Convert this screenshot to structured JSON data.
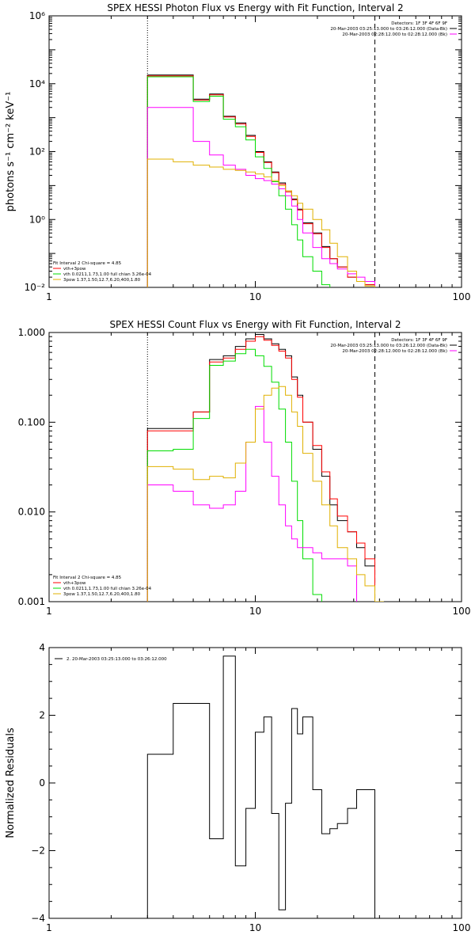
{
  "chart_data": [
    {
      "type": "line",
      "subtype": "step",
      "title": "SPEX HESSI Photon Flux vs Energy with Fit Function, Interval 2",
      "ylabel": "photons s⁻¹ cm⁻² keV⁻¹",
      "xlabel": "",
      "xscale": "log",
      "yscale": "log",
      "xlim": [
        1,
        100
      ],
      "ylim": [
        0.01,
        1000000
      ],
      "x_ticks": [
        "1",
        "10",
        "100"
      ],
      "y_ticks": [
        {
          "value": 1000000,
          "label": "10⁶"
        },
        {
          "value": 10000,
          "label": "10⁴"
        },
        {
          "value": 100,
          "label": "10²"
        },
        {
          "value": 1,
          "label": "10⁰"
        },
        {
          "value": 0.01,
          "label": "10⁻²"
        }
      ],
      "legend_top_right": [
        {
          "text": "Detectors: 1F 3F 4F 6F 9F",
          "color": "#000000"
        },
        {
          "text": "20-Mar-2003 03:25:13.000 to 03:26:12.000 (Data-Bk)",
          "color": "#000000"
        },
        {
          "text": "20-Mar-2003 02:28:12.000 to 02:28:12.000 (Bk)",
          "color": "#ff00ff"
        }
      ],
      "legend_bottom_left": [
        {
          "text": "Fit Interval 2   Chi-square = 4.85",
          "color": "#000000"
        },
        {
          "text": "vth+3pow",
          "color": "#ff0000"
        },
        {
          "text": "vth 0.0211,1.73,1.00  full chian 3.26e-04",
          "color": "#00dd00"
        },
        {
          "text": "3pow 1.37,1.50,12.7,6.20,400,1.80",
          "color": "#e0b000"
        }
      ],
      "vlines": [
        {
          "x": 3.0,
          "style": "dotted"
        },
        {
          "x": 38.0,
          "style": "dashed"
        }
      ],
      "x_edges": [
        3.0,
        4.0,
        5.0,
        6.0,
        7.0,
        8.0,
        9.0,
        10.0,
        11.0,
        12.0,
        13.0,
        14.0,
        15.0,
        16.0,
        17.0,
        19.0,
        21.0,
        23.0,
        25.0,
        28.0,
        31.0,
        34.0,
        38.0,
        42.0
      ],
      "series": [
        {
          "name": "Data",
          "color": "#000000",
          "values": [
            18000,
            18000,
            3500,
            5000,
            1100,
            700,
            300,
            100,
            50,
            25,
            12,
            7,
            4,
            2,
            0.8,
            0.4,
            0.16,
            0.07,
            0.04,
            0.02,
            0.015,
            0.012,
            0.01
          ]
        },
        {
          "name": "vth+3pow",
          "color": "#ff0000",
          "values": [
            17000,
            17000,
            3300,
            4700,
            1050,
            650,
            280,
            95,
            48,
            24,
            11,
            6.5,
            3.8,
            1.9,
            0.75,
            0.38,
            0.15,
            0.07,
            0.04,
            0.02,
            0.015,
            0.012
          ]
        },
        {
          "name": "vth",
          "color": "#00dd00",
          "values": [
            16000,
            16000,
            3000,
            4300,
            900,
            540,
            220,
            70,
            32,
            13,
            5,
            2,
            0.7,
            0.25,
            0.08,
            0.03,
            0.012
          ]
        },
        {
          "name": "Bk",
          "color": "#ff00ff",
          "values": [
            2000,
            2000,
            200,
            80,
            40,
            30,
            20,
            16,
            14,
            11,
            8,
            5,
            2.5,
            1,
            0.4,
            0.15,
            0.07,
            0.05,
            0.035,
            0.025,
            0.02,
            0.015
          ]
        },
        {
          "name": "3pow",
          "color": "#e0b000",
          "values": [
            60,
            50,
            40,
            35,
            30,
            28,
            25,
            22,
            18,
            14,
            10,
            7,
            5,
            3,
            2,
            1,
            0.5,
            0.2,
            0.08,
            0.03,
            0.015,
            0.011
          ]
        }
      ]
    },
    {
      "type": "line",
      "subtype": "step",
      "title": "SPEX HESSI Count Flux vs Energy with Fit Function, Interval 2",
      "ylabel": "",
      "xlabel": "",
      "xscale": "log",
      "yscale": "log",
      "xlim": [
        1,
        100
      ],
      "ylim": [
        0.001,
        1.0
      ],
      "x_ticks": [
        "1",
        "10",
        "100"
      ],
      "y_ticks": [
        {
          "value": 1.0,
          "label": "1.000"
        },
        {
          "value": 0.1,
          "label": "0.100"
        },
        {
          "value": 0.01,
          "label": "0.010"
        },
        {
          "value": 0.001,
          "label": "0.001"
        }
      ],
      "legend_top_right": [
        {
          "text": "Detectors: 1F 3F 4F 6F 9F",
          "color": "#000000"
        },
        {
          "text": "20-Mar-2003 03:25:13.000 to 03:26:12.000 (Data-Bk)",
          "color": "#000000"
        },
        {
          "text": "20-Mar-2003 02:28:12.000 to 02:28:12.000 (Bk)",
          "color": "#ff00ff"
        }
      ],
      "legend_bottom_left": [
        {
          "text": "Fit Interval 2   Chi-square = 4.85",
          "color": "#000000"
        },
        {
          "text": "vth+3pow",
          "color": "#ff0000"
        },
        {
          "text": "vth 0.0211,1.73,1.00  full chian 3.26e-04",
          "color": "#00dd00"
        },
        {
          "text": "3pow 1.37,1.50,12.7,6.20,400,1.80",
          "color": "#e0b000"
        }
      ],
      "vlines": [
        {
          "x": 3.0,
          "style": "dotted"
        },
        {
          "x": 38.0,
          "style": "dashed"
        }
      ],
      "x_edges": [
        3.0,
        4.0,
        5.0,
        6.0,
        7.0,
        8.0,
        9.0,
        10.0,
        11.0,
        12.0,
        13.0,
        14.0,
        15.0,
        16.0,
        17.0,
        19.0,
        21.0,
        23.0,
        25.0,
        28.0,
        31.0,
        34.0,
        38.0,
        42.0
      ],
      "series": [
        {
          "name": "Data",
          "color": "#000000",
          "values": [
            0.085,
            0.085,
            0.13,
            0.5,
            0.55,
            0.7,
            0.85,
            0.95,
            0.85,
            0.75,
            0.65,
            0.55,
            0.32,
            0.2,
            0.1,
            0.05,
            0.025,
            0.012,
            0.008,
            0.006,
            0.004,
            0.0025
          ]
        },
        {
          "name": "vth+3pow",
          "color": "#ff0000",
          "values": [
            0.08,
            0.08,
            0.13,
            0.47,
            0.52,
            0.65,
            0.8,
            0.9,
            0.82,
            0.72,
            0.62,
            0.52,
            0.3,
            0.19,
            0.1,
            0.055,
            0.028,
            0.014,
            0.009,
            0.006,
            0.0045,
            0.003
          ]
        },
        {
          "name": "vth",
          "color": "#00dd00",
          "values": [
            0.048,
            0.05,
            0.11,
            0.43,
            0.48,
            0.58,
            0.65,
            0.55,
            0.42,
            0.28,
            0.14,
            0.06,
            0.022,
            0.008,
            0.003,
            0.0012
          ]
        },
        {
          "name": "Bk",
          "color": "#ff00ff",
          "values": [
            0.02,
            0.017,
            0.012,
            0.011,
            0.012,
            0.017,
            0.06,
            0.15,
            0.06,
            0.025,
            0.012,
            0.007,
            0.005,
            0.004,
            0.004,
            0.0035,
            0.003,
            0.003,
            0.003,
            0.0025
          ]
        },
        {
          "name": "3pow",
          "color": "#e0b000",
          "values": [
            0.032,
            0.03,
            0.023,
            0.025,
            0.024,
            0.035,
            0.06,
            0.14,
            0.2,
            0.24,
            0.25,
            0.2,
            0.13,
            0.09,
            0.045,
            0.022,
            0.012,
            0.007,
            0.004,
            0.003,
            0.002,
            0.0015,
            0.001
          ]
        }
      ]
    },
    {
      "type": "line",
      "subtype": "step",
      "title": "",
      "ylabel": "Normalized Residuals",
      "xlabel": "",
      "xscale": "log",
      "yscale": "linear",
      "xlim": [
        1,
        100
      ],
      "ylim": [
        -4,
        4
      ],
      "x_ticks": [
        "1",
        "10",
        "100"
      ],
      "y_ticks": [
        {
          "value": 4,
          "label": "4"
        },
        {
          "value": 2,
          "label": "2"
        },
        {
          "value": 0,
          "label": "0"
        },
        {
          "value": -2,
          "label": "−2"
        },
        {
          "value": -4,
          "label": "−4"
        }
      ],
      "legend_top_left": [
        {
          "text": "2. 20-Mar-2003 03:25:13.000 to 03:26:12.000",
          "color": "#000000"
        }
      ],
      "x_edges": [
        3.0,
        4.0,
        5.0,
        6.0,
        7.0,
        8.0,
        9.0,
        10.0,
        11.0,
        12.0,
        13.0,
        14.0,
        15.0,
        16.0,
        17.0,
        19.0,
        21.0,
        23.0,
        25.0,
        28.0,
        31.0,
        34.0,
        38.0
      ],
      "series": [
        {
          "name": "Residuals",
          "color": "#000000",
          "values": [
            0.85,
            2.35,
            2.35,
            -1.65,
            3.75,
            -2.45,
            -0.75,
            1.5,
            1.95,
            -0.9,
            -3.75,
            -0.6,
            2.2,
            1.45,
            1.95,
            -0.2,
            -1.5,
            -1.35,
            -1.2,
            -0.75,
            -0.2,
            -0.2
          ]
        }
      ]
    }
  ]
}
